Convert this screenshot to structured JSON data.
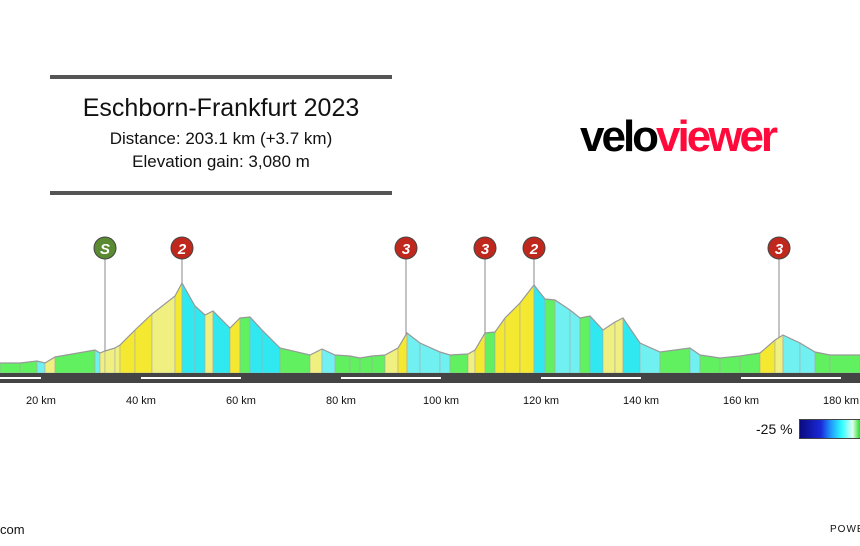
{
  "header": {
    "title": "Eschborn-Frankfurt 2023",
    "distance": "Distance: 203.1 km (+3.7 km)",
    "elevation_gain": "Elevation gain: 3,080 m"
  },
  "logo": {
    "part1": "velo",
    "part2": "viewer",
    "colors": {
      "velo": "#000000",
      "viewer": "#ff0a3a"
    }
  },
  "legend": {
    "min_label": "-25 %"
  },
  "footer": {
    "left": "com",
    "right": "POWE"
  },
  "chart_data": {
    "type": "area",
    "title": "",
    "xlabel": "",
    "ylabel": "",
    "x_unit": "km",
    "x_ticks": [
      "20 km",
      "40 km",
      "60 km",
      "80 km",
      "100 km",
      "120 km",
      "140 km",
      "160 km",
      "180 km"
    ],
    "x_tick_values": [
      20,
      40,
      60,
      80,
      100,
      120,
      140,
      160,
      180
    ],
    "profile_note_units": "relative height (no y axis printed)",
    "profile": [
      [
        11.8,
        10
      ],
      [
        15.8,
        10
      ],
      [
        19.2,
        12
      ],
      [
        20.8,
        10
      ],
      [
        22.8,
        16
      ],
      [
        30.8,
        23
      ],
      [
        31.8,
        20
      ],
      [
        32.8,
        22
      ],
      [
        34.8,
        25
      ],
      [
        35.8,
        28
      ],
      [
        38.8,
        43
      ],
      [
        42.2,
        59
      ],
      [
        46.8,
        77
      ],
      [
        48.2,
        90
      ],
      [
        50.8,
        67
      ],
      [
        52.8,
        58
      ],
      [
        54.4,
        62
      ],
      [
        57.8,
        45
      ],
      [
        59.8,
        55
      ],
      [
        61.8,
        56
      ],
      [
        64.2,
        43
      ],
      [
        67.8,
        25
      ],
      [
        73.8,
        18
      ],
      [
        76.2,
        24
      ],
      [
        78.8,
        18
      ],
      [
        81.8,
        17
      ],
      [
        83.8,
        15
      ],
      [
        86.2,
        17
      ],
      [
        88.8,
        18
      ],
      [
        91.4,
        25
      ],
      [
        93.2,
        40
      ],
      [
        95.8,
        30
      ],
      [
        99.8,
        21
      ],
      [
        101.8,
        18
      ],
      [
        105.4,
        19
      ],
      [
        106.8,
        23
      ],
      [
        108.8,
        40
      ],
      [
        110.8,
        41
      ],
      [
        112.8,
        55
      ],
      [
        115.8,
        70
      ],
      [
        118.6,
        88
      ],
      [
        120.8,
        74
      ],
      [
        122.8,
        73
      ],
      [
        125.8,
        63
      ],
      [
        127.8,
        55
      ],
      [
        129.8,
        57
      ],
      [
        132.4,
        43
      ],
      [
        134.8,
        51
      ],
      [
        136.4,
        55
      ],
      [
        139.8,
        30
      ],
      [
        143.8,
        21
      ],
      [
        149.8,
        25
      ],
      [
        151.8,
        18
      ],
      [
        155.8,
        15
      ],
      [
        159.8,
        17
      ],
      [
        163.8,
        20
      ],
      [
        166.8,
        33
      ],
      [
        168.4,
        38
      ],
      [
        171.8,
        30
      ],
      [
        174.8,
        21
      ],
      [
        177.8,
        18
      ],
      [
        183.8,
        18
      ]
    ],
    "climbs": [
      {
        "label": "S",
        "km": 32.8,
        "color": "#5a8a32"
      },
      {
        "label": "2",
        "km": 48.2,
        "color": "#c0281e"
      },
      {
        "label": "3",
        "km": 93.0,
        "color": "#c0281e"
      },
      {
        "label": "3",
        "km": 108.8,
        "color": "#c0281e"
      },
      {
        "label": "2",
        "km": 118.6,
        "color": "#c0281e"
      },
      {
        "label": "3",
        "km": 167.6,
        "color": "#c0281e"
      }
    ],
    "colors": {
      "climb": "#f0f080",
      "steep_climb": "#f5e830",
      "descent": "#70f0f0",
      "steep_descent": "#30e8f0",
      "flat": "#60f060",
      "road_bar": "#444444"
    },
    "grid": false
  }
}
